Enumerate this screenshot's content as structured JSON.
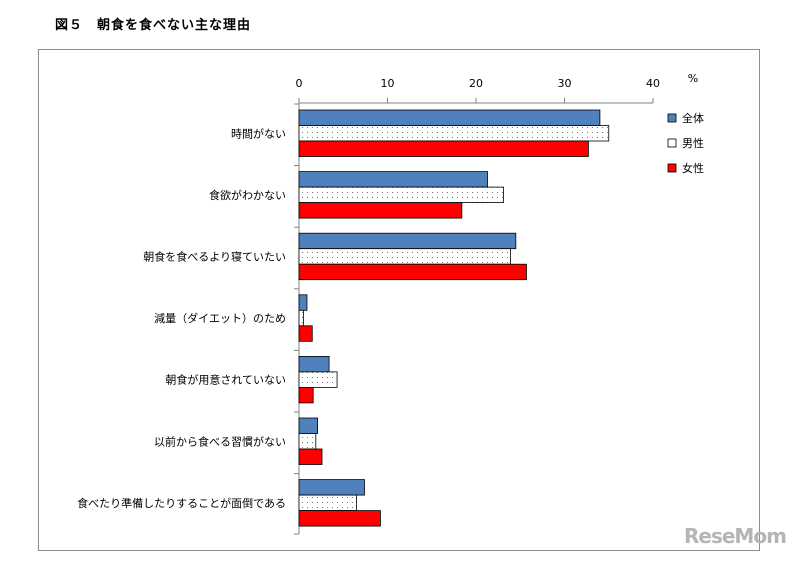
{
  "figure_title": "図５　朝食を食べない主な理由",
  "watermark": "ReseMom",
  "chart_data": {
    "type": "bar",
    "orientation": "horizontal",
    "title": "図５　朝食を食べない主な理由",
    "unit_label": "%",
    "xlim": [
      0,
      40
    ],
    "x_ticks": [
      "0",
      "10",
      "20",
      "30",
      "40"
    ],
    "x_tick_values": [
      0,
      10,
      20,
      30,
      40
    ],
    "legend_position": "right",
    "grid": false,
    "categories": [
      "時間がない",
      "食欲がわかない",
      "朝食を食べるより寝ていたい",
      "減量（ダイエット）のため",
      "朝食が用意されていない",
      "以前から食べる習慣がない",
      "食べたり準備したりすることが面倒である"
    ],
    "series": [
      {
        "name": "全体",
        "color": "#4f81bd",
        "pattern": "solid",
        "values": [
          34.0,
          21.3,
          24.5,
          0.9,
          3.4,
          2.1,
          7.4
        ]
      },
      {
        "name": "男性",
        "color": "#ffffff",
        "pattern": "dots",
        "values": [
          35.0,
          23.1,
          23.9,
          0.5,
          4.3,
          1.9,
          6.5
        ]
      },
      {
        "name": "女性",
        "color": "#ff0000",
        "pattern": "solid",
        "values": [
          32.7,
          18.4,
          25.7,
          1.5,
          1.6,
          2.6,
          9.2
        ]
      }
    ]
  }
}
